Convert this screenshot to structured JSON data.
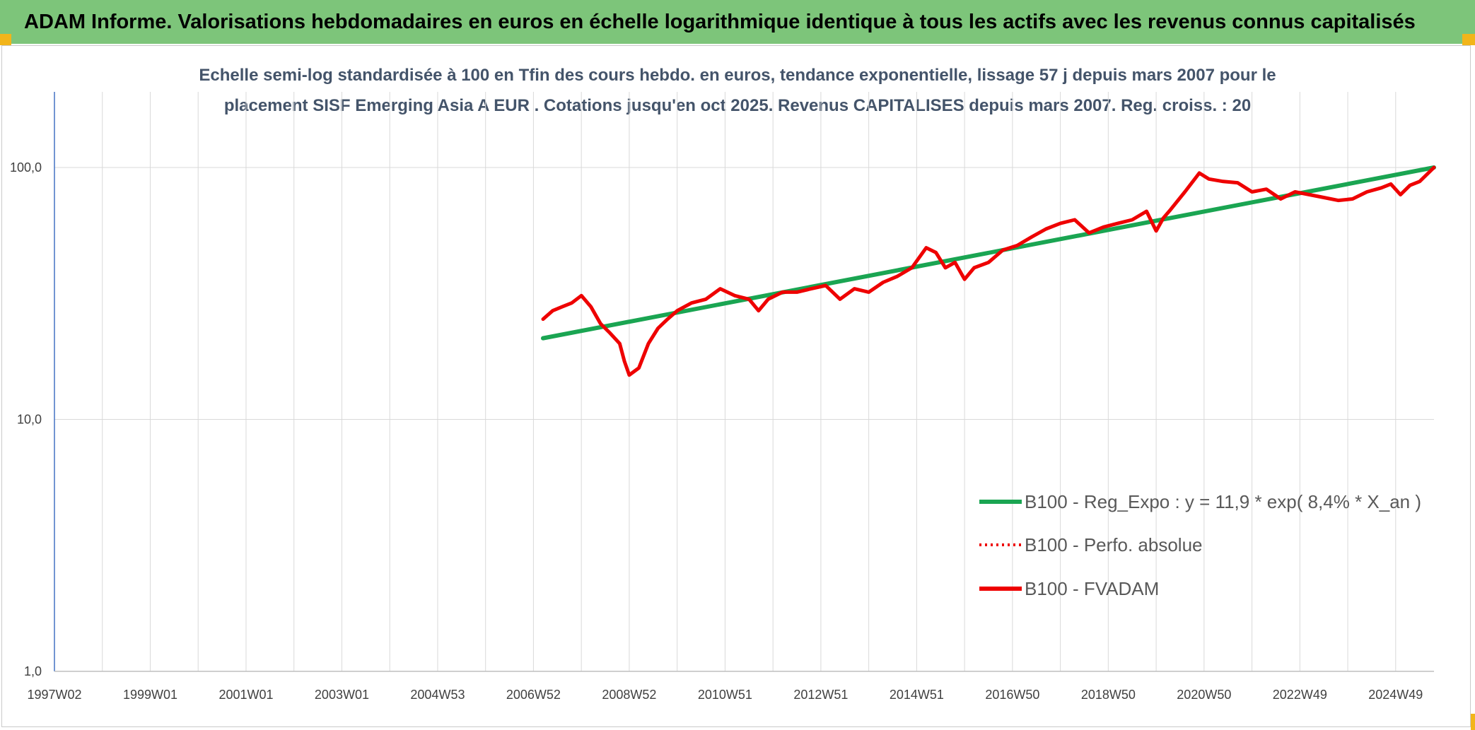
{
  "banner": {
    "title": "ADAM Informe. Valorisations hebdomadaires en euros en échelle logarithmique identique à tous les actifs avec les revenus connus capitalisés"
  },
  "colors": {
    "banner_bg": "#7dc57a",
    "regression": "#1aa552",
    "fvadam": "#ee0000",
    "perfo": "#ee0000",
    "grid": "#d9d9d9",
    "corner": "#f2b51a"
  },
  "chart_data": {
    "type": "line",
    "title_lines": [
      "Echelle semi-log standardisée à 100 en Tfin des cours hebdo. en euros, tendance exponentielle, lissage 57 j depuis mars 2007 pour le",
      "placement SISF Emerging Asia A EUR . Cotations jusqu'en oct 2025. Revenus CAPITALISES depuis mars 2007. Reg. croiss. : 20"
    ],
    "y_scale": "log",
    "ylim": [
      1,
      100
    ],
    "y_ticks": [
      {
        "value": 1,
        "label": "1,0"
      },
      {
        "value": 10,
        "label": "10,0"
      },
      {
        "value": 100,
        "label": "100,0"
      }
    ],
    "x_range": [
      1997.0,
      2025.8
    ],
    "x_tick_labels": [
      "1997W02",
      "1999W01",
      "2001W01",
      "2003W01",
      "2004W53",
      "2006W52",
      "2008W52",
      "2010W51",
      "2012W51",
      "2014W51",
      "2016W50",
      "2018W50",
      "2020W50",
      "2022W49",
      "2024W49"
    ],
    "x_tick_values": [
      1997.0,
      1999.0,
      2001.0,
      2003.0,
      2005.0,
      2007.0,
      2009.0,
      2011.0,
      2013.0,
      2015.0,
      2017.0,
      2019.0,
      2021.0,
      2023.0,
      2025.0
    ],
    "grid": true,
    "legend_position": "lower-right",
    "legend": [
      {
        "label": "B100 - Reg_Expo : y = 11,9 * exp( 8,4% *  X_an )",
        "style": "solid-green"
      },
      {
        "label": "B100 - Perfo. absolue",
        "style": "dotted-red"
      },
      {
        "label": "B100 - FVADAM",
        "style": "solid-red"
      }
    ],
    "series": [
      {
        "name": "B100 - Reg_Expo : y = 11,9 * exp( 8,4% *  X_an )",
        "x": [
          2007.2,
          2025.8
        ],
        "y": [
          21.0,
          100.0
        ]
      },
      {
        "name": "B100 - FVADAM",
        "x": [
          2007.2,
          2007.4,
          2007.6,
          2007.8,
          2008.0,
          2008.2,
          2008.4,
          2008.6,
          2008.8,
          2008.9,
          2009.0,
          2009.2,
          2009.4,
          2009.6,
          2009.8,
          2010.0,
          2010.3,
          2010.6,
          2010.9,
          2011.2,
          2011.5,
          2011.7,
          2011.9,
          2012.2,
          2012.5,
          2012.8,
          2013.1,
          2013.4,
          2013.7,
          2014.0,
          2014.3,
          2014.6,
          2014.9,
          2015.2,
          2015.4,
          2015.6,
          2015.8,
          2016.0,
          2016.2,
          2016.5,
          2016.8,
          2017.1,
          2017.4,
          2017.7,
          2018.0,
          2018.3,
          2018.6,
          2018.9,
          2019.2,
          2019.5,
          2019.8,
          2020.0,
          2020.15,
          2020.3,
          2020.6,
          2020.9,
          2021.1,
          2021.4,
          2021.7,
          2022.0,
          2022.3,
          2022.6,
          2022.9,
          2023.2,
          2023.5,
          2023.8,
          2024.1,
          2024.4,
          2024.7,
          2024.9,
          2025.1,
          2025.3,
          2025.5,
          2025.8
        ],
        "y": [
          25,
          27,
          28,
          29,
          31,
          28,
          24,
          22,
          20,
          17,
          15,
          16,
          20,
          23,
          25,
          27,
          29,
          30,
          33,
          31,
          30,
          27,
          30,
          32,
          32,
          33,
          34,
          30,
          33,
          32,
          35,
          37,
          40,
          48,
          46,
          40,
          42,
          36,
          40,
          42,
          47,
          49,
          53,
          57,
          60,
          62,
          55,
          58,
          60,
          62,
          67,
          56,
          63,
          68,
          80,
          95,
          90,
          88,
          87,
          80,
          82,
          75,
          80,
          78,
          76,
          74,
          75,
          80,
          83,
          86,
          78,
          85,
          88,
          100
        ]
      }
    ]
  }
}
